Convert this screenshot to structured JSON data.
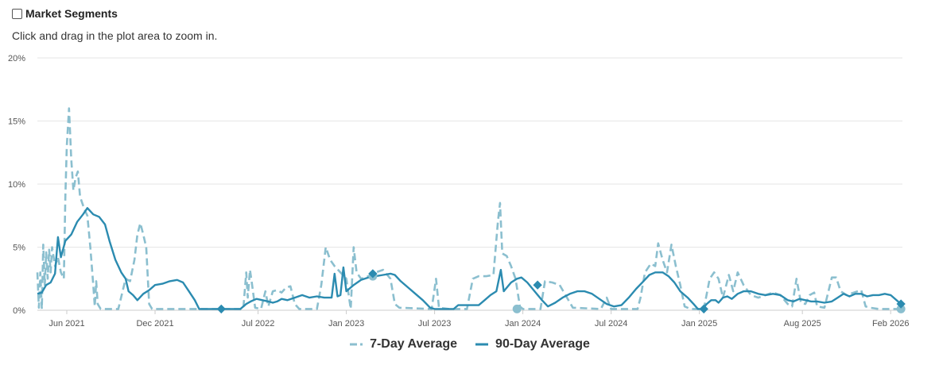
{
  "header": {
    "title": "Market Segments",
    "hint": "Click and drag in the plot area to zoom in."
  },
  "colors": {
    "series7": "#8bbfcf",
    "series90": "#2b8bb0",
    "grid": "#e6e6e6",
    "axis": "#cccccc"
  },
  "chart_data": {
    "type": "line",
    "title": "Market Segments",
    "xlabel": "",
    "ylabel": "",
    "x_unit": "months from Jan 2021",
    "xlim": [
      3.0,
      61.8
    ],
    "ylim": [
      0,
      20
    ],
    "y_ticks": [
      0,
      5,
      10,
      15,
      20
    ],
    "y_tick_labels": [
      "0%",
      "5%",
      "10%",
      "15%",
      "20%"
    ],
    "x_tick_values": [
      5,
      11,
      18,
      24,
      30,
      36,
      42,
      48,
      55,
      61
    ],
    "x_tick_labels": [
      "Jun 2021",
      "Dec 2021",
      "Jul 2022",
      "Jan 2023",
      "Jul 2023",
      "Jan 2024",
      "Jul 2024",
      "Jan 2025",
      "Aug 2025",
      "Feb 2026"
    ],
    "grid": true,
    "legend": "bottom-center",
    "series": [
      {
        "name": "7-Day Average",
        "style": "dashed",
        "points": [
          [
            3.0,
            3.0
          ],
          [
            3.1,
            0.2
          ],
          [
            3.2,
            3.0
          ],
          [
            3.3,
            0.1
          ],
          [
            3.4,
            5.2
          ],
          [
            3.5,
            2.0
          ],
          [
            3.6,
            4.6
          ],
          [
            3.7,
            2.5
          ],
          [
            3.8,
            4.8
          ],
          [
            3.9,
            3.0
          ],
          [
            4.0,
            5.0
          ],
          [
            4.2,
            3.5
          ],
          [
            4.4,
            4.2
          ],
          [
            4.6,
            3.0
          ],
          [
            4.8,
            2.5
          ],
          [
            4.9,
            9.0
          ],
          [
            5.0,
            13.0
          ],
          [
            5.15,
            16.0
          ],
          [
            5.3,
            12.0
          ],
          [
            5.45,
            9.5
          ],
          [
            5.6,
            10.5
          ],
          [
            5.75,
            11.0
          ],
          [
            5.9,
            9.0
          ],
          [
            6.05,
            8.5
          ],
          [
            6.2,
            8.0
          ],
          [
            6.4,
            7.5
          ],
          [
            6.6,
            5.0
          ],
          [
            6.8,
            2.0
          ],
          [
            6.9,
            0.3
          ],
          [
            7.0,
            2.3
          ],
          [
            7.1,
            0.5
          ],
          [
            7.3,
            0.1
          ],
          [
            8.5,
            0.1
          ],
          [
            9.0,
            2.5
          ],
          [
            9.3,
            2.3
          ],
          [
            9.6,
            4.0
          ],
          [
            9.8,
            6.0
          ],
          [
            10.0,
            6.9
          ],
          [
            10.2,
            6.0
          ],
          [
            10.4,
            5.0
          ],
          [
            10.6,
            0.5
          ],
          [
            10.8,
            0.1
          ],
          [
            17.0,
            0.1
          ],
          [
            17.2,
            3.0
          ],
          [
            17.3,
            1.0
          ],
          [
            17.45,
            3.2
          ],
          [
            17.6,
            2.0
          ],
          [
            17.8,
            0.2
          ],
          [
            18.2,
            0.1
          ],
          [
            18.5,
            1.5
          ],
          [
            18.7,
            0.3
          ],
          [
            19.0,
            1.5
          ],
          [
            19.3,
            1.6
          ],
          [
            19.6,
            1.4
          ],
          [
            19.9,
            1.8
          ],
          [
            20.2,
            1.9
          ],
          [
            20.5,
            0.5
          ],
          [
            20.8,
            0.1
          ],
          [
            22.0,
            0.1
          ],
          [
            22.3,
            2.0
          ],
          [
            22.6,
            5.0
          ],
          [
            22.9,
            4.0
          ],
          [
            23.2,
            3.5
          ],
          [
            23.6,
            3.0
          ],
          [
            24.0,
            2.5
          ],
          [
            24.3,
            0.1
          ],
          [
            24.5,
            5.0
          ],
          [
            24.7,
            3.0
          ],
          [
            25.0,
            2.5
          ],
          [
            25.5,
            2.7
          ],
          [
            26.0,
            3.0
          ],
          [
            26.5,
            3.2
          ],
          [
            27.0,
            2.5
          ],
          [
            27.3,
            0.5
          ],
          [
            27.6,
            0.2
          ],
          [
            29.8,
            0.1
          ],
          [
            30.1,
            2.5
          ],
          [
            30.3,
            0.2
          ],
          [
            31.0,
            0.1
          ],
          [
            32.2,
            0.1
          ],
          [
            32.6,
            2.5
          ],
          [
            33.0,
            2.7
          ],
          [
            33.5,
            2.7
          ],
          [
            34.0,
            2.8
          ],
          [
            34.3,
            7.0
          ],
          [
            34.45,
            8.5
          ],
          [
            34.6,
            4.5
          ],
          [
            34.9,
            4.3
          ],
          [
            35.2,
            3.5
          ],
          [
            35.5,
            2.5
          ],
          [
            35.8,
            0.3
          ],
          [
            36.0,
            0.1
          ],
          [
            37.2,
            0.1
          ],
          [
            37.5,
            2.3
          ],
          [
            38.0,
            2.2
          ],
          [
            38.5,
            2.0
          ],
          [
            39.0,
            1.0
          ],
          [
            39.4,
            0.2
          ],
          [
            41.3,
            0.1
          ],
          [
            41.7,
            1.0
          ],
          [
            42.0,
            0.1
          ],
          [
            43.8,
            0.1
          ],
          [
            44.0,
            1.0
          ],
          [
            44.3,
            3.0
          ],
          [
            44.7,
            3.7
          ],
          [
            45.0,
            3.5
          ],
          [
            45.2,
            5.3
          ],
          [
            45.5,
            4.0
          ],
          [
            45.8,
            3.0
          ],
          [
            46.1,
            5.2
          ],
          [
            46.4,
            3.5
          ],
          [
            46.7,
            2.0
          ],
          [
            47.0,
            0.3
          ],
          [
            47.4,
            0.1
          ],
          [
            48.3,
            0.1
          ],
          [
            48.7,
            2.5
          ],
          [
            49.0,
            3.0
          ],
          [
            49.3,
            2.5
          ],
          [
            49.6,
            1.0
          ],
          [
            50.0,
            2.8
          ],
          [
            50.3,
            1.5
          ],
          [
            50.6,
            3.0
          ],
          [
            51.0,
            2.0
          ],
          [
            51.5,
            1.2
          ],
          [
            52.0,
            1.0
          ],
          [
            52.5,
            1.2
          ],
          [
            53.0,
            1.4
          ],
          [
            53.5,
            1.2
          ],
          [
            54.0,
            0.5
          ],
          [
            54.3,
            0.3
          ],
          [
            54.6,
            2.5
          ],
          [
            54.9,
            0.6
          ],
          [
            55.2,
            0.5
          ],
          [
            55.5,
            1.2
          ],
          [
            55.8,
            1.4
          ],
          [
            56.0,
            0.3
          ],
          [
            56.5,
            0.2
          ],
          [
            57.0,
            2.6
          ],
          [
            57.3,
            2.6
          ],
          [
            57.6,
            1.5
          ],
          [
            58.0,
            1.2
          ],
          [
            58.5,
            1.4
          ],
          [
            59.0,
            1.6
          ],
          [
            59.3,
            0.3
          ],
          [
            59.6,
            0.2
          ],
          [
            60.2,
            0.1
          ],
          [
            61.3,
            0.1
          ],
          [
            61.8,
            0.1
          ]
        ],
        "markers": [
          [
            25.8,
            2.7
          ],
          [
            35.6,
            0.1
          ],
          [
            61.7,
            0.1
          ]
        ]
      },
      {
        "name": "90-Day Average",
        "style": "solid",
        "points": [
          [
            3.0,
            1.3
          ],
          [
            3.3,
            1.4
          ],
          [
            3.6,
            2.0
          ],
          [
            3.9,
            2.2
          ],
          [
            4.2,
            2.9
          ],
          [
            4.4,
            5.8
          ],
          [
            4.6,
            4.2
          ],
          [
            4.9,
            5.5
          ],
          [
            5.3,
            6.0
          ],
          [
            5.7,
            7.0
          ],
          [
            6.1,
            7.6
          ],
          [
            6.4,
            8.1
          ],
          [
            6.8,
            7.6
          ],
          [
            7.2,
            7.4
          ],
          [
            7.6,
            6.8
          ],
          [
            7.9,
            5.5
          ],
          [
            8.3,
            4.0
          ],
          [
            8.7,
            3.0
          ],
          [
            9.0,
            2.5
          ],
          [
            9.2,
            1.5
          ],
          [
            9.5,
            1.2
          ],
          [
            9.8,
            0.8
          ],
          [
            10.2,
            1.3
          ],
          [
            10.6,
            1.6
          ],
          [
            11.0,
            2.0
          ],
          [
            11.5,
            2.1
          ],
          [
            12.0,
            2.3
          ],
          [
            12.5,
            2.4
          ],
          [
            12.9,
            2.2
          ],
          [
            13.3,
            1.5
          ],
          [
            13.7,
            0.8
          ],
          [
            14.0,
            0.1
          ],
          [
            16.5,
            0.1
          ],
          [
            16.8,
            0.1
          ],
          [
            17.2,
            0.5
          ],
          [
            17.5,
            0.7
          ],
          [
            17.9,
            0.9
          ],
          [
            18.3,
            0.8
          ],
          [
            18.7,
            0.7
          ],
          [
            19.0,
            0.6
          ],
          [
            19.3,
            0.7
          ],
          [
            19.6,
            0.9
          ],
          [
            20.0,
            0.8
          ],
          [
            20.5,
            1.0
          ],
          [
            21.0,
            1.2
          ],
          [
            21.5,
            1.0
          ],
          [
            22.0,
            1.1
          ],
          [
            22.5,
            1.0
          ],
          [
            23.0,
            1.0
          ],
          [
            23.2,
            2.9
          ],
          [
            23.4,
            1.1
          ],
          [
            23.6,
            1.2
          ],
          [
            23.8,
            3.4
          ],
          [
            24.0,
            1.5
          ],
          [
            24.5,
            2.0
          ],
          [
            25.0,
            2.4
          ],
          [
            25.5,
            2.6
          ],
          [
            26.0,
            2.7
          ],
          [
            26.5,
            2.8
          ],
          [
            27.0,
            2.9
          ],
          [
            27.3,
            2.8
          ],
          [
            27.7,
            2.3
          ],
          [
            28.2,
            1.8
          ],
          [
            28.7,
            1.3
          ],
          [
            29.2,
            0.8
          ],
          [
            29.7,
            0.2
          ],
          [
            30.0,
            0.1
          ],
          [
            31.3,
            0.1
          ],
          [
            31.6,
            0.4
          ],
          [
            32.0,
            0.4
          ],
          [
            32.5,
            0.4
          ],
          [
            33.0,
            0.4
          ],
          [
            33.4,
            0.8
          ],
          [
            33.8,
            1.2
          ],
          [
            34.2,
            1.5
          ],
          [
            34.5,
            3.2
          ],
          [
            34.7,
            1.5
          ],
          [
            35.2,
            2.2
          ],
          [
            35.6,
            2.5
          ],
          [
            35.9,
            2.6
          ],
          [
            36.3,
            2.2
          ],
          [
            36.8,
            1.5
          ],
          [
            37.3,
            0.8
          ],
          [
            37.7,
            0.3
          ],
          [
            38.2,
            0.6
          ],
          [
            38.7,
            1.0
          ],
          [
            39.2,
            1.3
          ],
          [
            39.7,
            1.5
          ],
          [
            40.2,
            1.5
          ],
          [
            40.7,
            1.3
          ],
          [
            41.2,
            0.9
          ],
          [
            41.7,
            0.5
          ],
          [
            42.2,
            0.3
          ],
          [
            42.7,
            0.4
          ],
          [
            43.2,
            1.0
          ],
          [
            43.7,
            1.7
          ],
          [
            44.2,
            2.3
          ],
          [
            44.6,
            2.8
          ],
          [
            45.0,
            3.0
          ],
          [
            45.5,
            3.0
          ],
          [
            45.9,
            2.7
          ],
          [
            46.3,
            2.2
          ],
          [
            46.7,
            1.5
          ],
          [
            47.2,
            1.0
          ],
          [
            47.6,
            0.5
          ],
          [
            47.9,
            0.1
          ],
          [
            48.2,
            0.1
          ],
          [
            48.5,
            0.5
          ],
          [
            48.8,
            0.8
          ],
          [
            49.1,
            0.8
          ],
          [
            49.3,
            0.6
          ],
          [
            49.6,
            1.0
          ],
          [
            49.9,
            1.1
          ],
          [
            50.2,
            0.9
          ],
          [
            50.6,
            1.3
          ],
          [
            51.0,
            1.5
          ],
          [
            51.5,
            1.5
          ],
          [
            52.0,
            1.3
          ],
          [
            52.5,
            1.2
          ],
          [
            53.0,
            1.3
          ],
          [
            53.5,
            1.2
          ],
          [
            54.0,
            0.8
          ],
          [
            54.4,
            0.7
          ],
          [
            54.8,
            0.9
          ],
          [
            55.2,
            0.8
          ],
          [
            55.6,
            0.7
          ],
          [
            56.0,
            0.7
          ],
          [
            56.5,
            0.6
          ],
          [
            57.0,
            0.7
          ],
          [
            57.4,
            1.0
          ],
          [
            57.8,
            1.3
          ],
          [
            58.2,
            1.1
          ],
          [
            58.6,
            1.3
          ],
          [
            59.0,
            1.3
          ],
          [
            59.4,
            1.1
          ],
          [
            59.8,
            1.2
          ],
          [
            60.2,
            1.2
          ],
          [
            60.6,
            1.3
          ],
          [
            61.0,
            1.2
          ],
          [
            61.4,
            0.8
          ],
          [
            61.7,
            0.5
          ]
        ],
        "markers": [
          [
            15.5,
            0.1
          ],
          [
            25.8,
            2.9
          ],
          [
            37.0,
            2.0
          ],
          [
            48.3,
            0.1
          ],
          [
            61.7,
            0.5
          ]
        ]
      }
    ]
  }
}
